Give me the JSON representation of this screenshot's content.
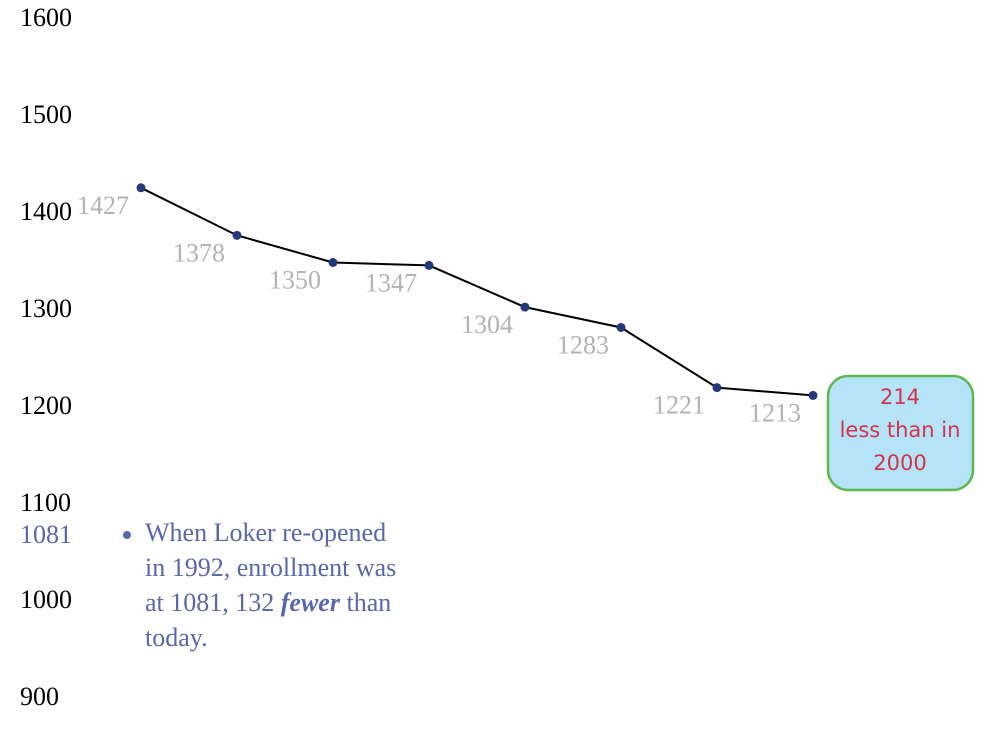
{
  "chart_data": {
    "type": "line",
    "values": [
      1427,
      1378,
      1350,
      1347,
      1304,
      1283,
      1221,
      1213
    ],
    "color": "#000000",
    "marker_color": "#23397a",
    "ylim": [
      900,
      1600
    ],
    "yticks": [
      900,
      1000,
      1100,
      1200,
      1300,
      1400,
      1500,
      1600
    ],
    "side_label": "1081",
    "note_lines": [
      "When Loker re-opened",
      "in 1992, enrollment was",
      "at 1081, 132",
      "fewer",
      "than",
      "today."
    ],
    "callout_lines": [
      "214",
      "less than in",
      "2000"
    ]
  }
}
